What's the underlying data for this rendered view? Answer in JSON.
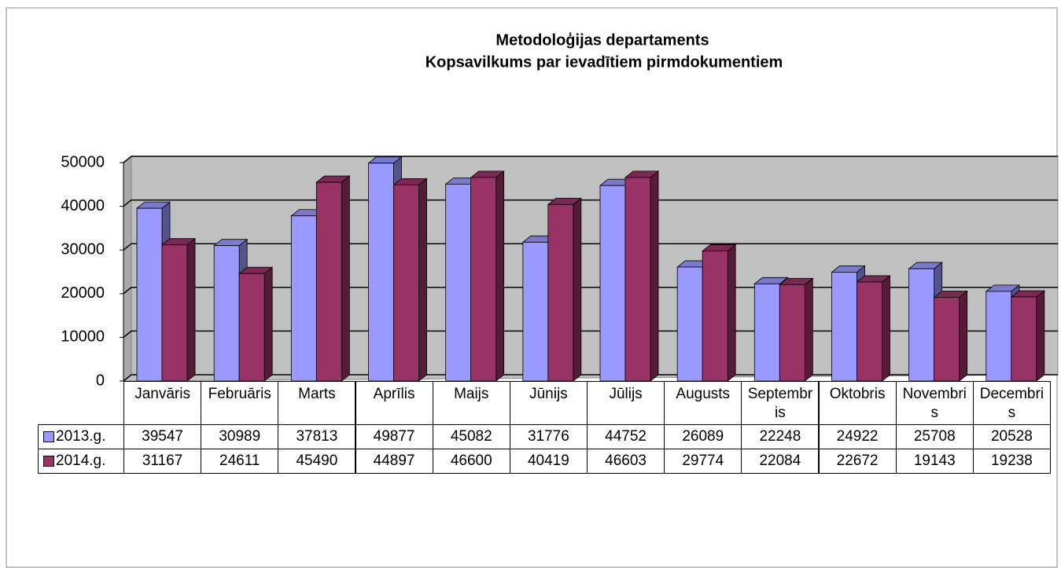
{
  "chart_data": {
    "type": "bar3d",
    "title": "Metodoloģijas departaments",
    "subtitle": "Kopsavilkums par ievadītiem pirmdokumentiem",
    "categories": [
      "Janvāris",
      "Februāris",
      "Marts",
      "Aprīlis",
      "Maijs",
      "Jūnijs",
      "Jūlijs",
      "Augusts",
      "Septembris",
      "Oktobris",
      "Novembris",
      "Decembris"
    ],
    "series": [
      {
        "name": "2013.g.",
        "color": "#9999ff",
        "values": [
          39547,
          30989,
          37813,
          49877,
          45082,
          31776,
          44752,
          26089,
          22248,
          24922,
          25708,
          20528
        ]
      },
      {
        "name": "2014.g.",
        "color": "#993366",
        "values": [
          31167,
          24611,
          45490,
          44897,
          46600,
          40419,
          46603,
          29774,
          22084,
          22672,
          19143,
          19238
        ]
      }
    ],
    "ylim": [
      0,
      50000
    ],
    "yticks": [
      0,
      10000,
      20000,
      30000,
      40000,
      50000
    ],
    "grid": true,
    "data_table": true
  }
}
